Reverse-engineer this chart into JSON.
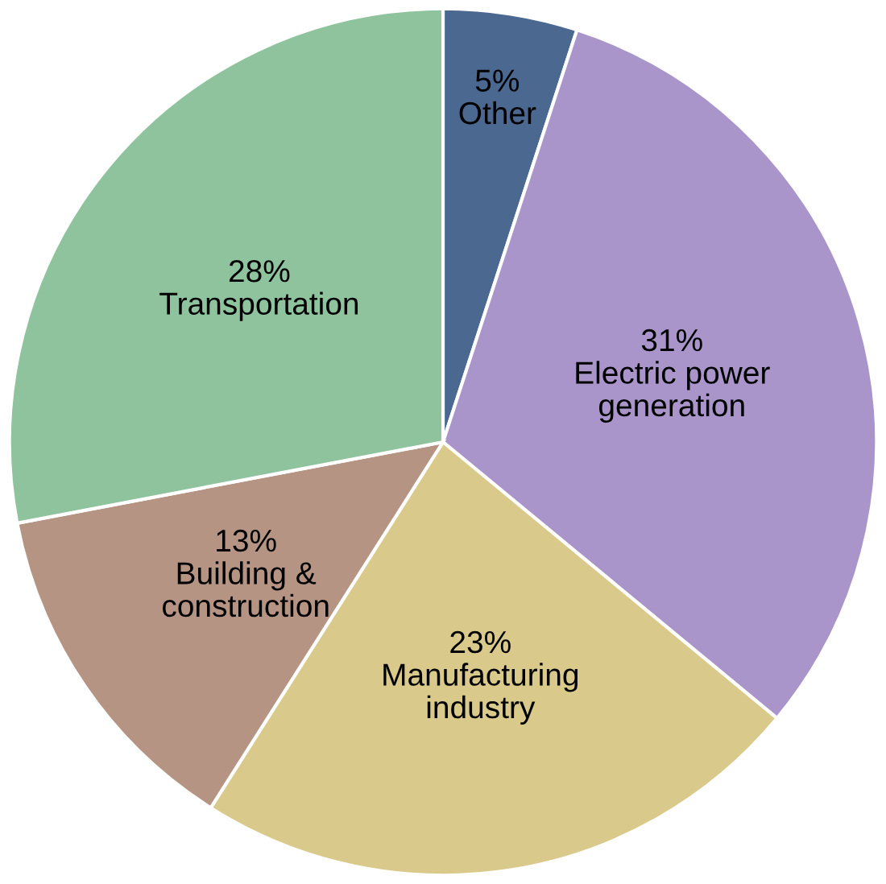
{
  "chart_data": {
    "type": "pie",
    "categories": [
      "Other",
      "Electric power\ngeneration",
      "Manufacturing\nindustry",
      "Building &\nconstruction",
      "Transportation"
    ],
    "values": [
      5,
      31,
      23,
      13,
      28
    ],
    "value_labels": [
      "5%",
      "31%",
      "23%",
      "13%",
      "28%"
    ],
    "colors": [
      "#4a6890",
      "#a995c9",
      "#d9ca8c",
      "#b59484",
      "#8fc39e"
    ]
  }
}
